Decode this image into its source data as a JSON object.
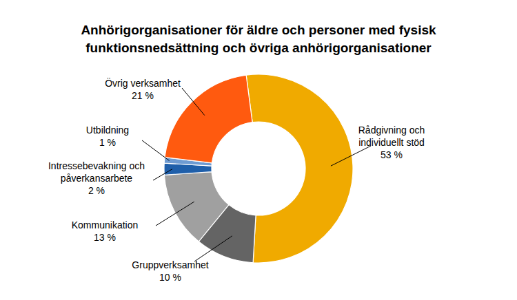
{
  "chart_data": {
    "type": "pie",
    "title": "Anhörigorganisationer för äldre och personer med fysisk funktionsnedsättning och övriga anhörigorganisationer",
    "categories": [
      "Rådgivning och individuellt stöd",
      "Gruppverksamhet",
      "Kommunikation",
      "Intressebevakning och påverkansarbete",
      "Utbildning",
      "Övrig verksamhet"
    ],
    "values": [
      53,
      10,
      13,
      2,
      1,
      21
    ],
    "value_labels": [
      "53 %",
      "10 %",
      "13 %",
      "2 %",
      "1 %",
      "21 %"
    ],
    "colors": [
      "#f0aa00",
      "#646464",
      "#a0a0a0",
      "#1f5faa",
      "#6e9bd2",
      "#ff5a0f"
    ],
    "data_labels": true
  }
}
